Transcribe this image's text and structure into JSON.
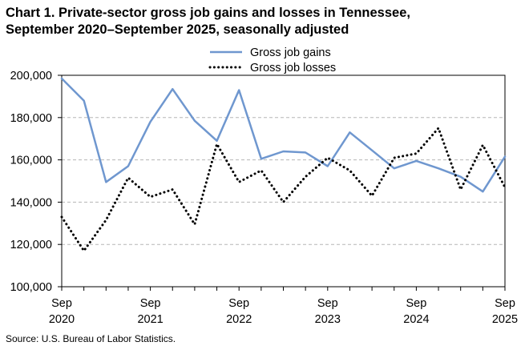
{
  "title_line1": "Chart 1. Private-sector gross job gains and losses in Tennessee,",
  "title_line2": "September 2020–September 2025, seasonally adjusted",
  "source": "Source: U.S. Bureau of Labor Statistics.",
  "chart_data": {
    "type": "line",
    "ylim": [
      100000,
      200000
    ],
    "y_ticks": [
      "100,000",
      "120,000",
      "140,000",
      "160,000",
      "180,000",
      "200,000"
    ],
    "y_tick_values": [
      100000,
      120000,
      140000,
      160000,
      180000,
      200000
    ],
    "x_tick_labels": [
      {
        "index": 0,
        "month": "Sep",
        "year": "2020"
      },
      {
        "index": 4,
        "month": "Sep",
        "year": "2021"
      },
      {
        "index": 8,
        "month": "Sep",
        "year": "2022"
      },
      {
        "index": 12,
        "month": "Sep",
        "year": "2023"
      },
      {
        "index": 16,
        "month": "Sep",
        "year": "2024"
      },
      {
        "index": 20,
        "month": "Sep",
        "year": "2025"
      }
    ],
    "grid": "horizontal",
    "legend_position": "top",
    "series": [
      {
        "name": "Gross job gains",
        "color": "#6f97cf",
        "style": "solid",
        "values": [
          198500,
          188000,
          149500,
          157000,
          178000,
          193500,
          178500,
          169000,
          193000,
          160500,
          164000,
          163500,
          157000,
          173000,
          164500,
          156000,
          159500,
          156000,
          152000,
          145000,
          161500
        ]
      },
      {
        "name": "Gross job losses",
        "color": "#000000",
        "style": "dotted",
        "values": [
          133000,
          117000,
          131500,
          151500,
          142500,
          146000,
          129500,
          167500,
          149500,
          155000,
          140000,
          152000,
          161000,
          155000,
          143000,
          161000,
          163000,
          175000,
          146000,
          167000,
          147000
        ]
      }
    ]
  }
}
